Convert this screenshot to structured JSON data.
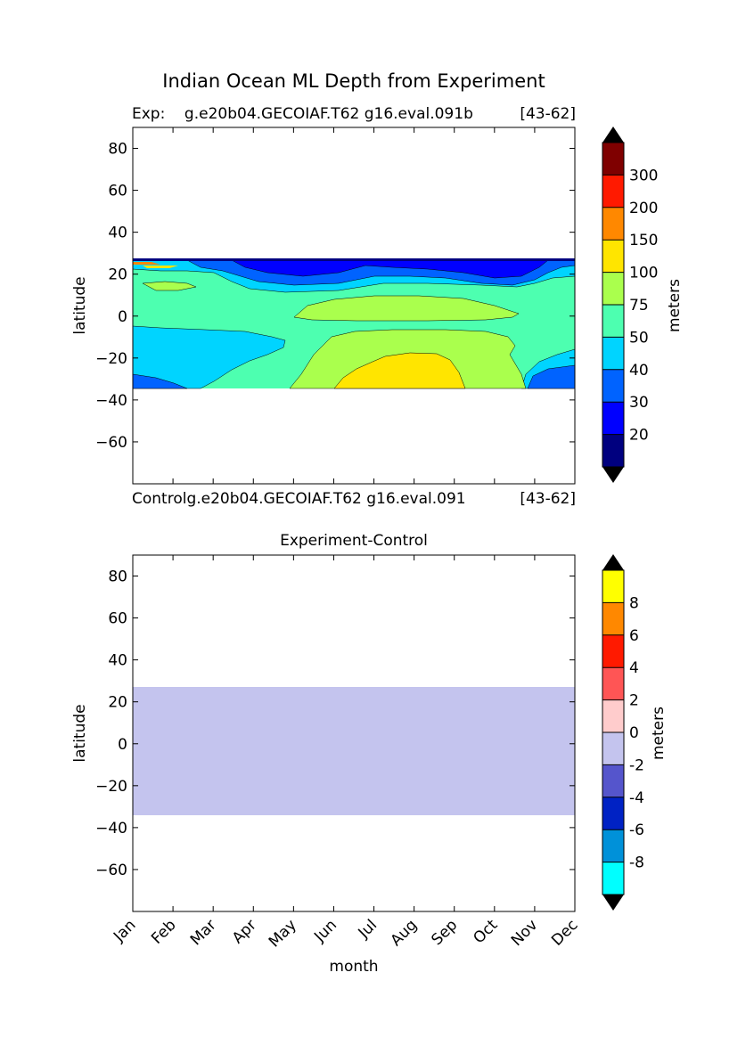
{
  "suptitle": "Indian Ocean ML Depth from Experiment",
  "chart_data": [
    {
      "type": "contour",
      "title_left": "Exp:    g.e20b04.GECOIAF.T62 g16.eval.091b",
      "title_right": "[43-62]",
      "bottom_left": "Controlg.e20b04.GECOIAF.T62 g16.eval.091",
      "bottom_right": "[43-62]",
      "ylabel": "latitude",
      "ylim": [
        -80,
        90
      ],
      "yticks": [
        80,
        60,
        40,
        20,
        0,
        -20,
        -40,
        -60
      ],
      "x_months": [
        "Jan",
        "Feb",
        "Mar",
        "Apr",
        "May",
        "Jun",
        "Jul",
        "Aug",
        "Sep",
        "Oct",
        "Nov",
        "Dec"
      ],
      "data_extent_lat": [
        -34,
        27
      ],
      "colorbar": {
        "label": "meters",
        "levels": [
          "20",
          "30",
          "40",
          "50",
          "75",
          "100",
          "150",
          "200",
          "300"
        ],
        "colors": [
          "#00007f",
          "#0000ff",
          "#0063ff",
          "#00d4ff",
          "#4dffb0",
          "#aaff4d",
          "#ffe500",
          "#ff8800",
          "#ff1a00",
          "#7f0000"
        ],
        "extend": "both"
      },
      "regions": [
        {
          "level": "30-40",
          "color": "#0063ff",
          "desc": "northern band and southeast corner"
        },
        {
          "level": "40-50",
          "color": "#00d4ff",
          "desc": "southern low-latitude band"
        },
        {
          "level": "50-75",
          "color": "#4dffb0",
          "desc": "background"
        },
        {
          "level": "75-100",
          "color": "#aaff4d",
          "desc": "winter deepening"
        },
        {
          "level": "100-150",
          "color": "#ffe500",
          "desc": "southern winter maximum"
        }
      ]
    },
    {
      "type": "contour",
      "title": "Experiment-Control",
      "ylabel": "latitude",
      "xlabel": "month",
      "ylim": [
        -80,
        90
      ],
      "yticks": [
        80,
        60,
        40,
        20,
        0,
        -20,
        -40,
        -60
      ],
      "x_months": [
        "Jan",
        "Feb",
        "Mar",
        "Apr",
        "May",
        "Jun",
        "Jul",
        "Aug",
        "Sep",
        "Oct",
        "Nov",
        "Dec"
      ],
      "data_extent_lat": [
        -34,
        27
      ],
      "fill_value_range": [
        -2,
        0
      ],
      "fill_color": "#c4c4ee",
      "colorbar": {
        "label": "meters",
        "levels": [
          "-8",
          "-6",
          "-4",
          "-2",
          "0",
          "2",
          "4",
          "6",
          "8"
        ],
        "colors": [
          "#00ffff",
          "#0091d9",
          "#0022c4",
          "#5555cc",
          "#c4c4ee",
          "#ffcccc",
          "#ff5555",
          "#ff1a00",
          "#ff8800",
          "#ffff00"
        ],
        "extend": "both"
      }
    }
  ]
}
